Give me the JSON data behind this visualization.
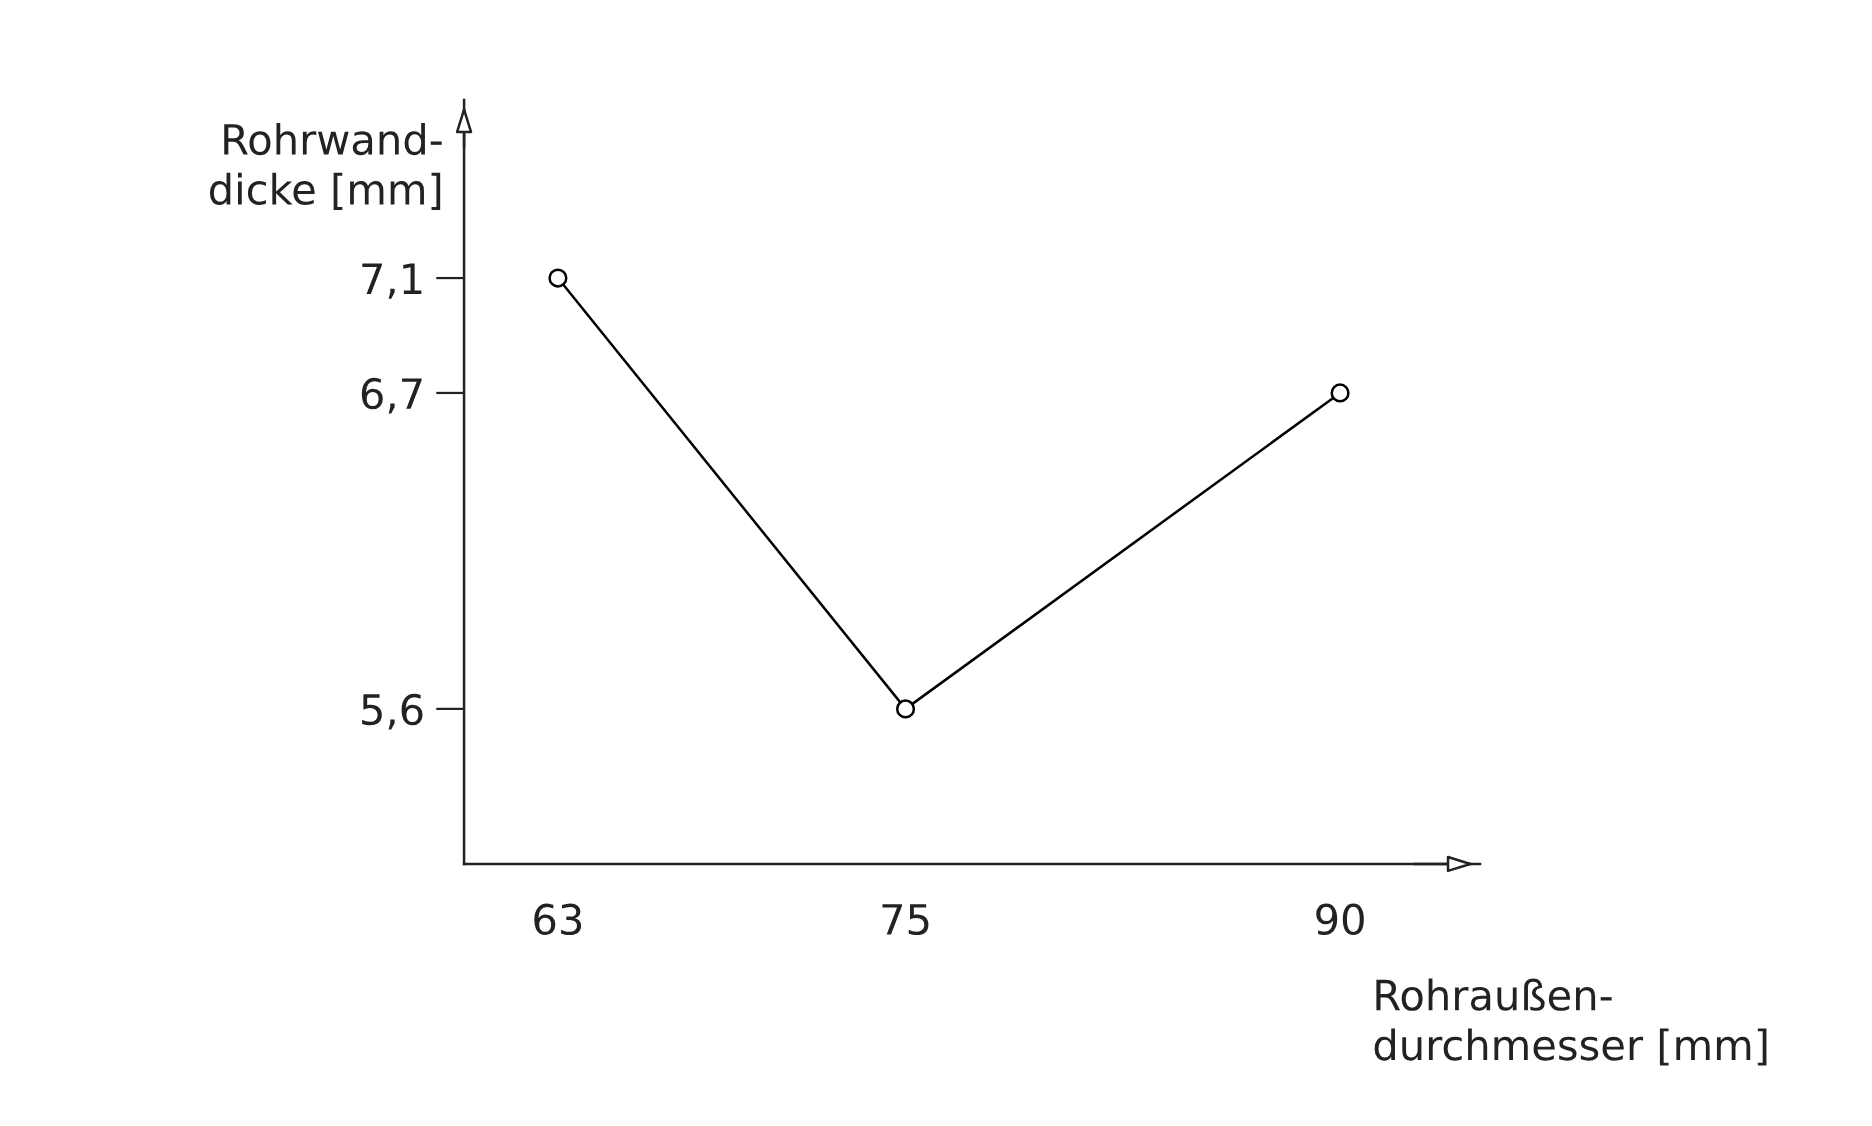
{
  "chart_data": {
    "type": "line",
    "xlabel": "Rohraußen-\ndurchmesser [mm]",
    "ylabel": "Rohrwand-\ndicke [mm]",
    "x": [
      63,
      75,
      90
    ],
    "series": [
      {
        "color": "#000000",
        "values": [
          7.1,
          5.6,
          6.7
        ]
      }
    ],
    "xlim": [
      59.76,
      94.83
    ],
    "ylim": [
      5.06,
      7.72
    ],
    "xticks": [
      63,
      75,
      90
    ],
    "yticks": [
      {
        "value": 7.1,
        "label": "7,1"
      },
      {
        "value": 6.7,
        "label": "6,7"
      },
      {
        "value": 5.6,
        "label": "5,6"
      }
    ],
    "marker": "circle",
    "line_style": "solid",
    "grid": false,
    "legend": false
  }
}
